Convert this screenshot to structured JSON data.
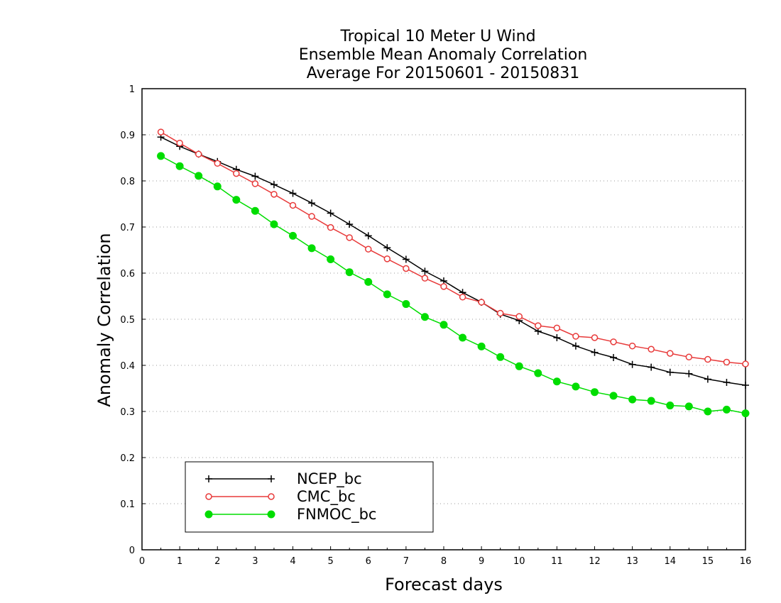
{
  "chart_data": {
    "type": "line",
    "title_lines": [
      "Tropical 10 Meter U Wind",
      "Ensemble Mean Anomaly Correlation",
      "Average For 20150601 - 20150831"
    ],
    "xlabel": "Forecast days",
    "ylabel": "Anomaly Correlation",
    "xlim": [
      0,
      16
    ],
    "ylim": [
      0,
      1
    ],
    "x_ticks": [
      "0",
      "1",
      "2",
      "3",
      "4",
      "5",
      "6",
      "7",
      "8",
      "9",
      "10",
      "11",
      "12",
      "13",
      "14",
      "15",
      "16"
    ],
    "y_ticks": [
      "0",
      "0.1",
      "0.2",
      "0.3",
      "0.4",
      "0.5",
      "0.6",
      "0.7",
      "0.8",
      "0.9",
      "1"
    ],
    "grid": "horizontal dotted",
    "legend_placement": "bottom-left",
    "x": [
      0.5,
      1,
      1.5,
      2,
      2.5,
      3,
      3.5,
      4,
      4.5,
      5,
      5.5,
      6,
      6.5,
      7,
      7.5,
      8,
      8.5,
      9,
      9.5,
      10,
      10.5,
      11,
      11.5,
      12,
      12.5,
      13,
      13.5,
      14,
      14.5,
      15,
      15.5,
      16
    ],
    "series": [
      {
        "name": "NCEP_bc",
        "color": "#000000",
        "marker": "plus",
        "values": [
          0.895,
          0.875,
          0.858,
          0.842,
          0.825,
          0.81,
          0.792,
          0.773,
          0.752,
          0.73,
          0.706,
          0.681,
          0.655,
          0.63,
          0.604,
          0.583,
          0.558,
          0.537,
          0.511,
          0.497,
          0.474,
          0.46,
          0.442,
          0.428,
          0.417,
          0.402,
          0.396,
          0.385,
          0.382,
          0.37,
          0.363,
          0.357
        ]
      },
      {
        "name": "CMC_bc",
        "color": "#e83a3a",
        "marker": "open-circle",
        "values": [
          0.906,
          0.882,
          0.858,
          0.838,
          0.816,
          0.794,
          0.771,
          0.747,
          0.723,
          0.699,
          0.677,
          0.652,
          0.631,
          0.61,
          0.589,
          0.571,
          0.548,
          0.537,
          0.513,
          0.506,
          0.486,
          0.481,
          0.463,
          0.46,
          0.451,
          0.442,
          0.435,
          0.426,
          0.418,
          0.413,
          0.407,
          0.403
        ]
      },
      {
        "name": "FNMOC_bc",
        "color": "#00dd00",
        "marker": "filled-circle",
        "values": [
          0.854,
          0.832,
          0.811,
          0.788,
          0.759,
          0.735,
          0.706,
          0.681,
          0.654,
          0.63,
          0.602,
          0.581,
          0.554,
          0.533,
          0.505,
          0.488,
          0.46,
          0.441,
          0.418,
          0.398,
          0.383,
          0.365,
          0.354,
          0.342,
          0.334,
          0.326,
          0.323,
          0.313,
          0.311,
          0.3,
          0.304,
          0.296
        ]
      }
    ]
  }
}
